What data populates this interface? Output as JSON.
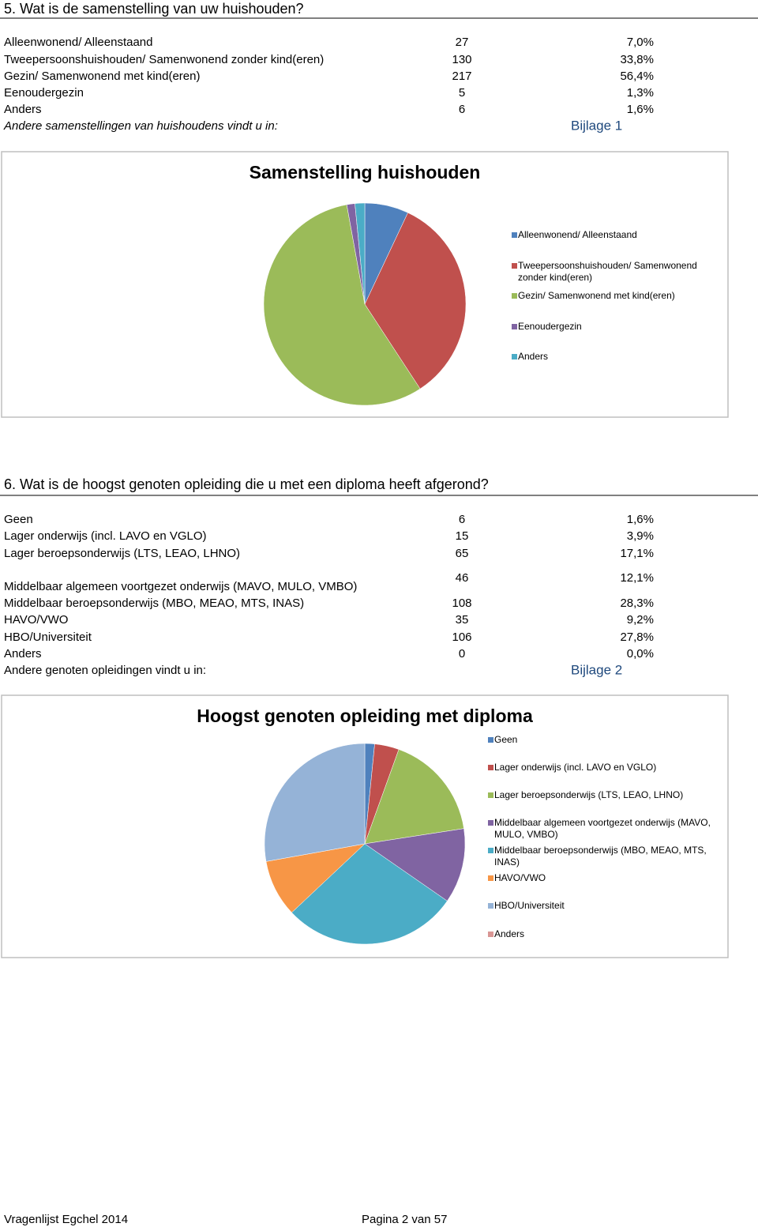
{
  "sections": [
    {
      "heading": "5. Wat is de samenstelling van uw huishouden?",
      "rows": [
        [
          "Alleenwonend/ Alleenstaand",
          "27",
          "7,0%"
        ],
        [
          "Tweepersoonshuishouden/ Samenwonend zonder kind(eren)",
          "130",
          "33,8%"
        ],
        [
          "Gezin/ Samenwonend met kind(eren)",
          "217",
          "56,4%"
        ],
        [
          "Eenoudergezin",
          "5",
          "1,3%"
        ],
        [
          "Anders",
          "6",
          "1,6%"
        ]
      ],
      "note": "Andere samenstellingen van huishoudens vindt u in:",
      "link": "Bijlage 1"
    },
    {
      "heading": "6. Wat is de hoogst genoten opleiding die u met een diploma heeft afgerond?",
      "rows": [
        [
          "Geen",
          "6",
          "1,6%"
        ],
        [
          "Lager onderwijs (incl. LAVO en VGLO)",
          "15",
          "3,9%"
        ],
        [
          "Lager beroepsonderwijs (LTS, LEAO, LHNO)",
          "65",
          "17,1%"
        ],
        [
          "Middelbaar algemeen voortgezet onderwijs (MAVO, MULO, VMBO)",
          "46",
          "12,1%"
        ],
        [
          "Middelbaar beroepsonderwijs (MBO, MEAO, MTS, INAS)",
          "108",
          "28,3%"
        ],
        [
          "HAVO/VWO",
          "35",
          "9,2%"
        ],
        [
          "HBO/Universiteit",
          "106",
          "27,8%"
        ],
        [
          "Anders",
          "0",
          "0,0%"
        ]
      ],
      "note": "Andere genoten opleidingen vindt u in:",
      "link": "Bijlage 2"
    }
  ],
  "chart_data": [
    {
      "type": "pie",
      "title": "Samenstelling huishouden",
      "categories": [
        "Alleenwonend/ Alleenstaand",
        "Tweepersoonshuishouden/ Samenwonend zonder kind(eren)",
        "Gezin/ Samenwonend met kind(eren)",
        "Eenoudergezin",
        "Anders"
      ],
      "values": [
        27,
        130,
        217,
        5,
        6
      ],
      "colors": [
        "#4F81BD",
        "#C0504D",
        "#9BBB59",
        "#8064A2",
        "#4BACC6"
      ]
    },
    {
      "type": "pie",
      "title": "Hoogst genoten opleiding met diploma",
      "categories": [
        "Geen",
        "Lager onderwijs (incl. LAVO en VGLO)",
        "Lager beroepsonderwijs (LTS, LEAO, LHNO)",
        "Middelbaar algemeen voortgezet onderwijs (MAVO, MULO, VMBO)",
        "Middelbaar beroepsonderwijs (MBO, MEAO, MTS, INAS)",
        "HAVO/VWO",
        "HBO/Universiteit",
        "Anders"
      ],
      "values": [
        6,
        15,
        65,
        46,
        108,
        35,
        106,
        0
      ],
      "colors": [
        "#4F81BD",
        "#C0504D",
        "#9BBB59",
        "#8064A2",
        "#4BACC6",
        "#F79646",
        "#95B3D7",
        "#D99694"
      ]
    }
  ],
  "footer": {
    "left": "Vragenlijst Egchel 2014",
    "right": "Pagina 2 van 57"
  }
}
